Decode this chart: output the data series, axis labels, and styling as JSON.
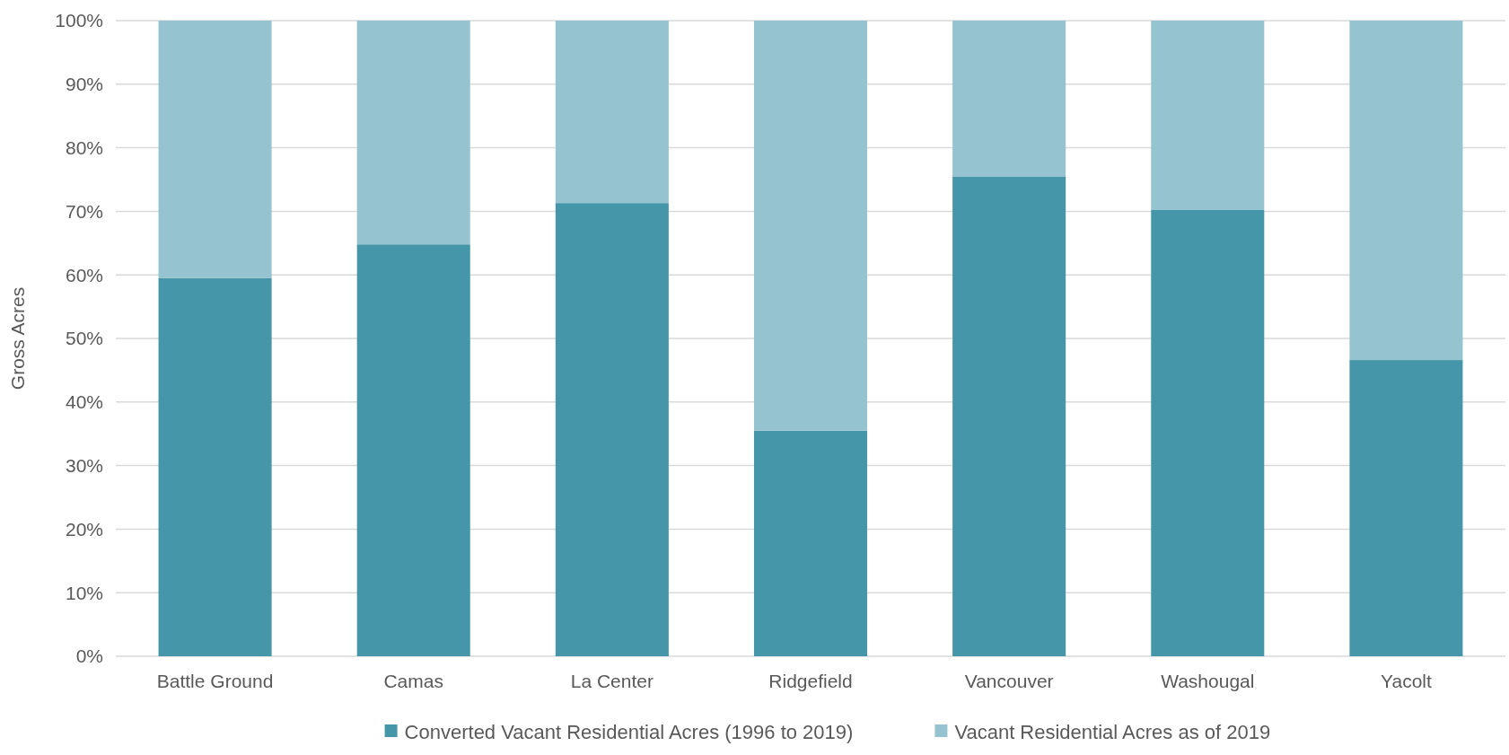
{
  "chart_data": {
    "type": "bar",
    "stacked": true,
    "ylabel": "Gross Acres",
    "categories": [
      "Battle Ground",
      "Camas",
      "La Center",
      "Ridgefield",
      "Vancouver",
      "Washougal",
      "Yacolt"
    ],
    "series": [
      {
        "name": "Converted Vacant Residential Acres (1996 to 2019)",
        "color": "#4496a8",
        "values": [
          59.5,
          64.8,
          71.3,
          35.5,
          75.5,
          70.2,
          46.6
        ]
      },
      {
        "name": "Vacant Residential Acres as of 2019",
        "color": "#95c3cf",
        "values": [
          40.5,
          35.2,
          28.7,
          64.5,
          24.5,
          29.8,
          53.4
        ]
      }
    ],
    "ylim": [
      0,
      100
    ],
    "yticks": [
      {
        "value": 0,
        "label": "0%"
      },
      {
        "value": 10,
        "label": "10%"
      },
      {
        "value": 20,
        "label": "20%"
      },
      {
        "value": 30,
        "label": "30%"
      },
      {
        "value": 40,
        "label": "40%"
      },
      {
        "value": 50,
        "label": "50%"
      },
      {
        "value": 60,
        "label": "60%"
      },
      {
        "value": 70,
        "label": "70%"
      },
      {
        "value": 80,
        "label": "80%"
      },
      {
        "value": 90,
        "label": "90%"
      },
      {
        "value": 100,
        "label": "100%"
      }
    ],
    "grid": "y",
    "legend": "bottom"
  }
}
